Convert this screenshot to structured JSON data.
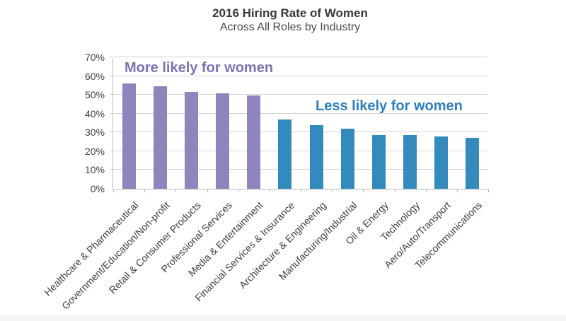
{
  "header": {
    "title": "2016 Hiring Rate of Women",
    "subtitle": "Across All Roles by Industry"
  },
  "chart_data": {
    "type": "bar",
    "title": "2016 Hiring Rate of Women",
    "subtitle": "Across All Roles by Industry",
    "xlabel": "",
    "ylabel": "",
    "ylim": [
      0,
      70
    ],
    "ytick_interval": 10,
    "ytick_labels": [
      "0%",
      "10%",
      "20%",
      "30%",
      "40%",
      "50%",
      "60%",
      "70%"
    ],
    "grid": true,
    "legend_position": "none",
    "categories": [
      "Healthcare & Pharmaceutical",
      "Government/Education/Non-profit",
      "Retail & Consumer Products",
      "Professional Services",
      "Media & Entertainment",
      "Financial Services & Insurance",
      "Architecture & Engineering",
      "Manufacturing/Industrial",
      "Oil & Energy",
      "Technology",
      "Aero/Auto/Transport",
      "Telecommunications"
    ],
    "series": [
      {
        "name": "More likely for women",
        "color": "#9184BC",
        "values": [
          56,
          54.5,
          51.5,
          51,
          49.5,
          null,
          null,
          null,
          null,
          null,
          null,
          null
        ]
      },
      {
        "name": "Less likely for women",
        "color": "#348ABD",
        "values": [
          null,
          null,
          null,
          null,
          null,
          37,
          34,
          32,
          28.5,
          28.5,
          28,
          27
        ]
      }
    ],
    "annotations": [
      {
        "text": "More likely for women",
        "color": "#7E72B5",
        "position": "above purple bars"
      },
      {
        "text": "Less likely for women",
        "color": "#2E7FC1",
        "position": "above blue bars"
      }
    ]
  }
}
